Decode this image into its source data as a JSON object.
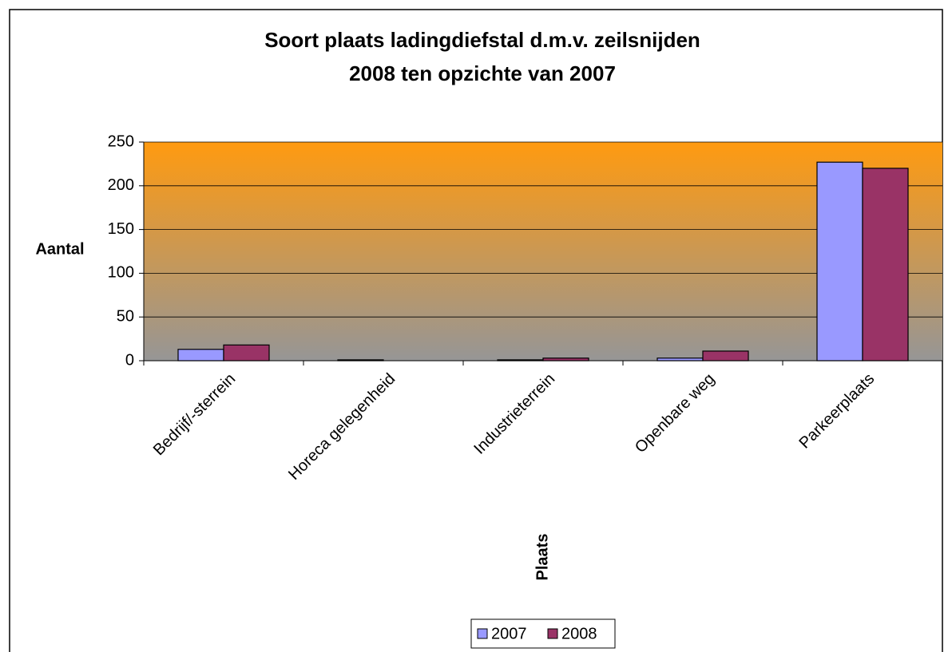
{
  "chart_data": {
    "type": "bar",
    "title": [
      "Soort plaats ladingdiefstal d.m.v. zeilsnijden",
      "2008 ten opzichte van 2007"
    ],
    "y_label": "Aantal",
    "x_label": "Plaats",
    "categories": [
      "Bedrijf/-sterrein",
      "Horeca gelegenheid",
      "Industrieterrein",
      "Openbare weg",
      "Parkeerplaats"
    ],
    "series": [
      {
        "name": "2007",
        "color": "#9999ff",
        "values": [
          13,
          1,
          1,
          3,
          227
        ]
      },
      {
        "name": "2008",
        "color": "#993366",
        "values": [
          18,
          0,
          3,
          11,
          220
        ]
      }
    ],
    "ylim": [
      0,
      250
    ],
    "yticks": [
      0,
      50,
      100,
      150,
      200,
      250
    ],
    "grid": true,
    "legend": "bottom"
  }
}
